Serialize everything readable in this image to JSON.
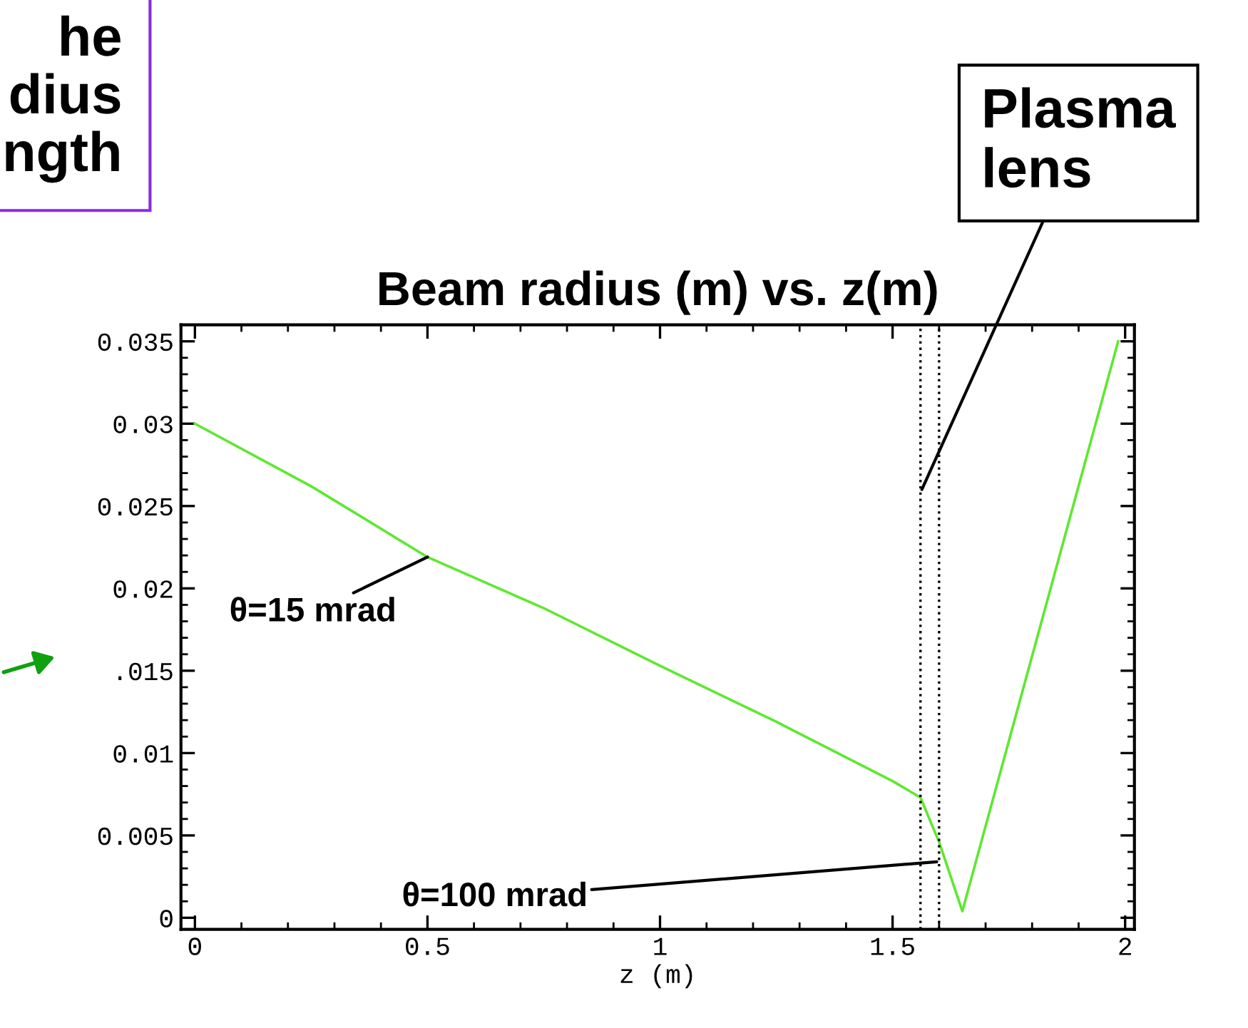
{
  "chart_data": {
    "type": "line",
    "title": "Beam radius (m) vs. z(m)",
    "xlabel": "z (m)",
    "x": [
      0,
      0.25,
      0.5,
      0.75,
      1,
      1.25,
      1.5,
      1.56,
      1.6,
      1.65,
      1.985
    ],
    "series": [
      {
        "color": "#5ee830",
        "values": [
          0.03,
          0.0262,
          0.0219,
          0.0188,
          0.0153,
          0.0119,
          0.0083,
          0.0073,
          0.0046,
          0.0004,
          0.035
        ]
      }
    ],
    "xlim": [
      -0.03,
      2.02
    ],
    "ylim": [
      -0.0007,
      0.036
    ],
    "xticks": [
      0,
      0.5,
      1,
      1.5,
      2
    ],
    "yticks": [
      0,
      0.005,
      0.01,
      {
        "value": 0.015,
        "label": ".015"
      },
      0.02,
      0.025,
      0.03,
      0.035
    ],
    "ref_lines": [
      {
        "axis": "x",
        "value": 1.56,
        "color": "#000000",
        "line_style": "dotted"
      },
      {
        "axis": "x",
        "value": 1.6,
        "color": "#000000",
        "line_style": "dotted"
      }
    ],
    "annotations": [
      {
        "text": "θ=15 mrad",
        "x": 0.5,
        "y": 0.0219
      },
      {
        "text": "θ=100 mrad",
        "x": 1.595,
        "y": 0.0034
      },
      {
        "text": "Plasma\nlens",
        "x": 1.563,
        "y": 0.026
      },
      "he\ndius\nngth"
    ],
    "grid": false,
    "legend": false,
    "marker": "none",
    "line_style": "solid"
  }
}
